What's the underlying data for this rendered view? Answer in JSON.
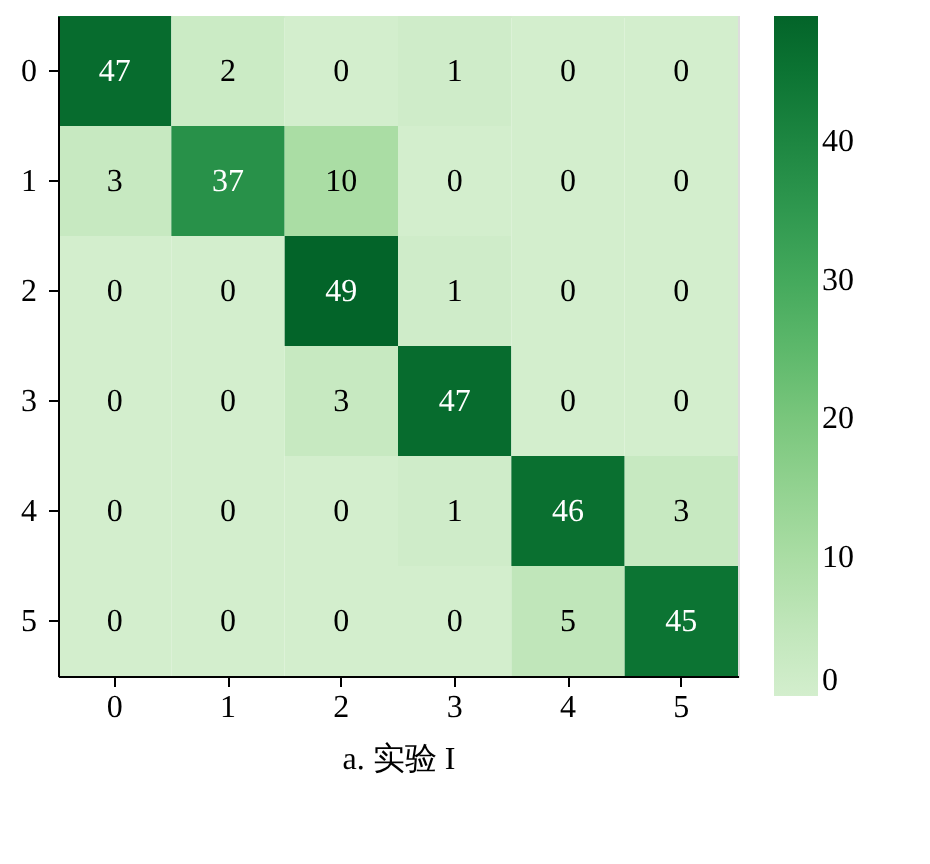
{
  "chart_data": {
    "type": "heatmap",
    "xlabel": "a. 实验 I",
    "categories": [
      "0",
      "1",
      "2",
      "3",
      "4",
      "5"
    ],
    "y_categories": [
      "0",
      "1",
      "2",
      "3",
      "4",
      "5"
    ],
    "cells": [
      [
        47,
        2,
        0,
        1,
        0,
        0
      ],
      [
        3,
        37,
        10,
        0,
        0,
        0
      ],
      [
        0,
        0,
        49,
        1,
        0,
        0
      ],
      [
        0,
        0,
        3,
        47,
        0,
        0
      ],
      [
        0,
        0,
        0,
        1,
        46,
        3
      ],
      [
        0,
        0,
        0,
        0,
        5,
        45
      ]
    ],
    "data_labels": true,
    "clim": [
      0,
      49
    ],
    "cticks": [
      0,
      10,
      20,
      30,
      40
    ]
  }
}
